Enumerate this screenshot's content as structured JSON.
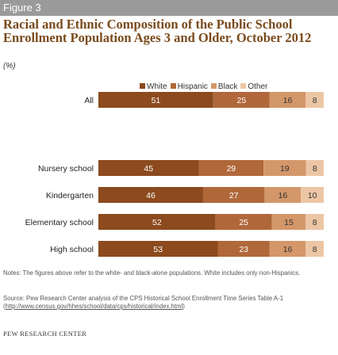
{
  "figure_label": "Figure 3",
  "title": "Racial and Ethnic Composition of the Public School Enrollment Population Ages 3 and Older, October 2012",
  "units": "(%)",
  "colors": {
    "White": "#8c4a1e",
    "Hispanic": "#b0683a",
    "Black": "#d4976a",
    "Other": "#ecc6a4"
  },
  "chart_data": {
    "type": "bar",
    "orientation": "horizontal",
    "stacked": true,
    "legend_position": "top",
    "categories": [
      "All",
      "Nursery school",
      "Kindergarten",
      "Elementary school",
      "High school"
    ],
    "series": [
      {
        "name": "White",
        "values": [
          51,
          45,
          46,
          52,
          53
        ]
      },
      {
        "name": "Hispanic",
        "values": [
          25,
          29,
          27,
          25,
          23
        ]
      },
      {
        "name": "Black",
        "values": [
          16,
          19,
          16,
          15,
          16
        ]
      },
      {
        "name": "Other",
        "values": [
          8,
          8,
          10,
          8,
          8
        ]
      }
    ]
  },
  "notes": "Notes: The figures above refer to the white- and black-alone populations.  White includes only non-Hispanics.",
  "source_prefix": "Source: Pew Research Center analysis of the CPS  Historical School Enrollment Time Series Table A-1 (",
  "source_link": "http://www.census.gov/hhes/school/data/cps/historical/index.html",
  "source_suffix": ")",
  "footer": "PEW RESEARCH CENTER"
}
